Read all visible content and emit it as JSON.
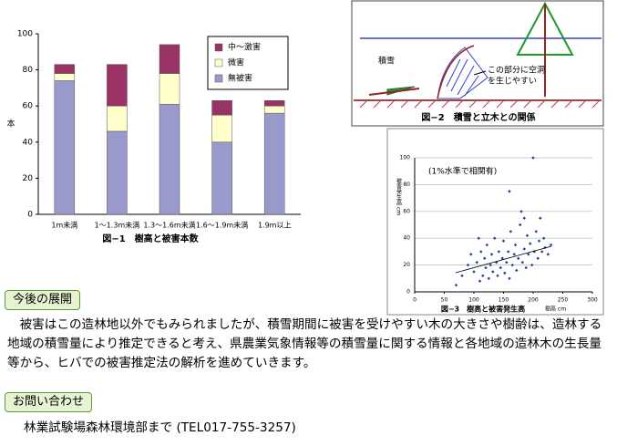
{
  "chart_data": [
    {
      "type": "bar",
      "stacked": true,
      "title": "図−1　樹高と被害本数",
      "ylabel": "本",
      "categories": [
        "1m未満",
        "1～1.3m未満",
        "1.3～1.6m未満",
        "1.6～1.9m未満",
        "1.9m以上"
      ],
      "series": [
        {
          "name": "無被害",
          "color": "#9999cc",
          "values": [
            74,
            46,
            61,
            40,
            56
          ]
        },
        {
          "name": "微害",
          "color": "#ffffcc",
          "values": [
            4,
            14,
            17,
            15,
            4
          ]
        },
        {
          "name": "中～激害",
          "color": "#993366",
          "values": [
            5,
            23,
            16,
            8,
            3
          ]
        }
      ],
      "ylim": [
        0,
        100
      ],
      "yticks": [
        0,
        20,
        40,
        60,
        80,
        100
      ],
      "grid": false,
      "legend": "upper right"
    },
    {
      "type": "scatter",
      "title": "図−3　樹高と被害発生高",
      "xlabel": "樹高 cm",
      "ylabel": "被害発生高 cm",
      "annotation": "(1%水準で相関有)",
      "color": "#1f3c99",
      "x": [
        100,
        105,
        110,
        112,
        115,
        118,
        120,
        122,
        125,
        128,
        130,
        132,
        135,
        138,
        140,
        142,
        145,
        148,
        150,
        152,
        155,
        158,
        160,
        162,
        165,
        168,
        170,
        172,
        175,
        178,
        180,
        182,
        185,
        188,
        190,
        192,
        195,
        198,
        200,
        202,
        205,
        208,
        210,
        212,
        215,
        218,
        220,
        225,
        230,
        80,
        90,
        70,
        95,
        108,
        160,
        185
      ],
      "values": [
        15,
        22,
        8,
        30,
        12,
        25,
        18,
        35,
        10,
        20,
        28,
        15,
        40,
        22,
        12,
        30,
        18,
        25,
        38,
        14,
        22,
        30,
        10,
        45,
        20,
        28,
        35,
        16,
        25,
        50,
        60,
        22,
        32,
        18,
        42,
        28,
        36,
        20,
        100,
        30,
        45,
        25,
        38,
        55,
        30,
        40,
        33,
        28,
        35,
        12,
        20,
        5,
        28,
        40,
        75,
        55
      ],
      "xlim": [
        0,
        300
      ],
      "xticks": [
        0,
        50,
        100,
        150,
        200,
        250,
        300
      ],
      "ylim": [
        0,
        100
      ],
      "yticks": [
        0,
        20,
        40,
        60,
        80,
        100
      ],
      "grid": true
    }
  ],
  "figure2": {
    "title": "図−2　積雪と立木との関係",
    "snow_label": "積雪",
    "note": [
      "この部分に空洞",
      "を生じやすい"
    ]
  },
  "sections": [
    {
      "heading": "今後の展開",
      "text": "　被害はこの造林地以外でもみられましたが、積雪期間に被害を受けやすい木の大きさや樹齢は、造林する地域の積雪量により推定できると考え、県農業気象情報等の積雪量に関する情報と各地域の造林木の生長量等から、ヒバでの被害推定法の解析を進めていきます。"
    },
    {
      "heading": "お問い合わせ",
      "text": "林業試験場森林環境部まで (TEL017-755-3257)"
    }
  ]
}
